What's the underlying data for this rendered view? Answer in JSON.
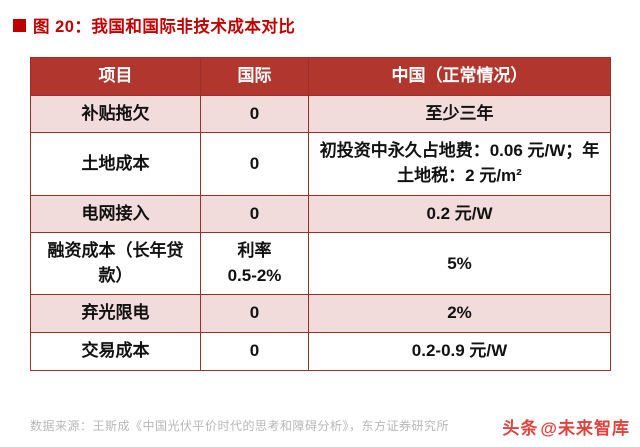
{
  "title": {
    "label": "图 20：我国和国际非技术成本对比"
  },
  "table": {
    "headers": {
      "item": "项目",
      "intl": "国际",
      "china": "中国（正常情况）"
    },
    "rows": [
      {
        "item": "补贴拖欠",
        "intl": "0",
        "china": "至少三年"
      },
      {
        "item": "土地成本",
        "intl": "0",
        "china": "初投资中永久占地费：0.06 元/W；年土地税：2 元/m²"
      },
      {
        "item": "电网接入",
        "intl": "0",
        "china": "0.2 元/W"
      },
      {
        "item": "融资成本（长年贷款）",
        "intl": "利率\n0.5-2%",
        "china": "5%"
      },
      {
        "item": "弃光限电",
        "intl": "0",
        "china": "2%"
      },
      {
        "item": "交易成本",
        "intl": "0",
        "china": "0.2-0.9 元/W"
      }
    ]
  },
  "footer": {
    "source": "数据来源：王斯成《中国光伏平价时代的思考和障碍分析》，东方证券研究所"
  },
  "watermark": {
    "brand": "头条",
    "handle": "@未来智库"
  },
  "colors": {
    "title_red": "#c00000",
    "header_bg": "#b1362e",
    "border": "#9e2e27",
    "row_alt_pink": "#f2dcdb",
    "watermark_red": "#e0433e"
  }
}
